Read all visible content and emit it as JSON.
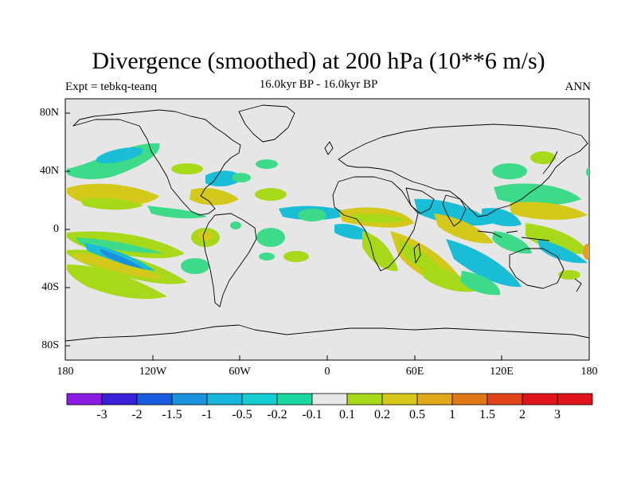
{
  "title": "Divergence (smoothed) at 200 hPa (10**6 m/s)",
  "subtitle_left": "Expt = tebkq-teanq",
  "subtitle_center": "16.0kyr BP - 16.0kyr BP",
  "subtitle_right": "ANN",
  "lat_labels": [
    "80N",
    "40N",
    "0",
    "40S",
    "80S"
  ],
  "lon_labels": [
    "180",
    "120W",
    "60W",
    "0",
    "60E",
    "120E",
    "180"
  ],
  "colorbar": {
    "labels": [
      "-3",
      "-2",
      "-1.5",
      "-1",
      "-0.5",
      "-0.2",
      "-0.1",
      "0.1",
      "0.2",
      "0.5",
      "1",
      "1.5",
      "2",
      "3"
    ],
    "colors": [
      "#8a1be0",
      "#3a1fd6",
      "#1a5ce0",
      "#1a93dc",
      "#19b5dc",
      "#14cdd0",
      "#1ad8a0",
      "#e8e8e8",
      "#a8d81a",
      "#d8c81a",
      "#e0a81a",
      "#e07818",
      "#e04418",
      "#e0141a",
      "#e0141a"
    ]
  },
  "colors": {
    "ocean": "#e6e6e6",
    "green": "#3dda8a",
    "cyan": "#19bed6",
    "blue": "#1a90dc",
    "lime": "#a8d81a",
    "yellow": "#d4c81a",
    "orange": "#e0a020"
  }
}
